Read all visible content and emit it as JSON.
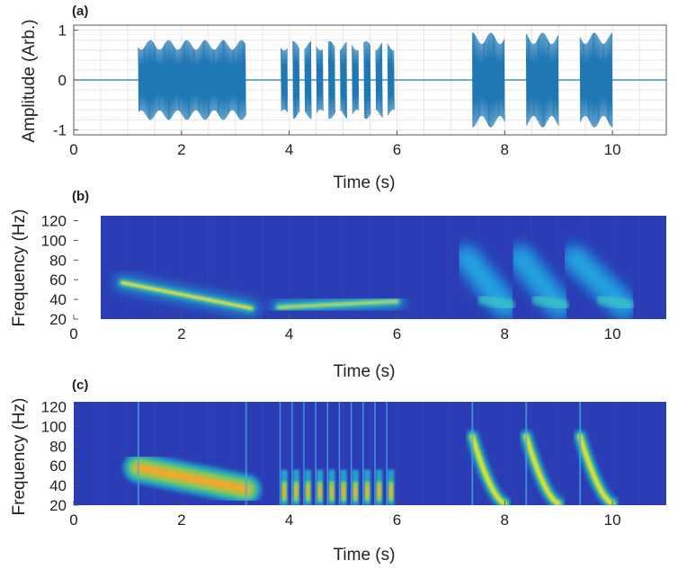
{
  "chart_data": [
    {
      "type": "line",
      "panel": "(a)",
      "xlabel": "Time (s)",
      "ylabel": "Amplitude (Arb.)",
      "xlim": [
        0,
        11
      ],
      "ylim": [
        -1.1,
        1.1
      ],
      "xticks": [
        0,
        2,
        4,
        6,
        8,
        10
      ],
      "yticks": [
        -1,
        0,
        1
      ],
      "grid": true,
      "color": "#1f77b4",
      "segments": [
        {
          "start": 1.2,
          "end": 3.2,
          "amplitude": 0.8,
          "kind": "continuous"
        },
        {
          "start": 3.8,
          "end": 6.0,
          "amplitude": 0.78,
          "kind": "pulses",
          "pulses": 10
        },
        {
          "start": 7.4,
          "end": 8.0,
          "amplitude": 0.95,
          "kind": "continuous"
        },
        {
          "start": 8.4,
          "end": 9.0,
          "amplitude": 0.95,
          "kind": "continuous"
        },
        {
          "start": 9.4,
          "end": 10.0,
          "amplitude": 0.95,
          "kind": "continuous"
        }
      ]
    },
    {
      "type": "heatmap",
      "panel": "(b)",
      "xlabel": "Time (s)",
      "ylabel": "Frequency (Hz)",
      "xlim": [
        0,
        11
      ],
      "ylim": [
        20,
        125
      ],
      "xticks": [
        0,
        2,
        4,
        6,
        8,
        10
      ],
      "yticks": [
        20,
        40,
        60,
        80,
        100,
        120
      ],
      "data_extent": [
        0.5,
        11
      ],
      "background_color": "#2b3db4",
      "features": [
        {
          "kind": "sweep",
          "t_start": 0.9,
          "t_end": 3.3,
          "f_start": 57,
          "f_end": 31,
          "intensity": 1.0
        },
        {
          "kind": "sweep",
          "t_start": 3.8,
          "t_end": 6.0,
          "f_start": 32,
          "f_end": 38,
          "intensity": 0.9
        },
        {
          "kind": "blob",
          "t_start": 7.2,
          "t_end": 8.1,
          "f_start": 82,
          "f_end": 34,
          "intensity": 0.5
        },
        {
          "kind": "blob",
          "t_start": 8.2,
          "t_end": 9.1,
          "f_start": 82,
          "f_end": 34,
          "intensity": 0.5
        },
        {
          "kind": "blob",
          "t_start": 9.2,
          "t_end": 10.3,
          "f_start": 82,
          "f_end": 34,
          "intensity": 0.5
        }
      ]
    },
    {
      "type": "heatmap",
      "panel": "(c)",
      "xlabel": "Time (s)",
      "ylabel": "Frequency (Hz)",
      "xlim": [
        0,
        11
      ],
      "ylim": [
        20,
        125
      ],
      "xticks": [
        0,
        2,
        4,
        6,
        8,
        10
      ],
      "yticks": [
        20,
        40,
        60,
        80,
        100,
        120
      ],
      "data_extent": [
        0,
        11
      ],
      "background_color": "#2b3db4",
      "features": [
        {
          "kind": "band",
          "t_start": 1.2,
          "t_end": 3.2,
          "f_start": 58,
          "f_end": 36,
          "intensity": 1.0
        },
        {
          "kind": "pulses",
          "t_start": 3.8,
          "t_end": 6.0,
          "f_center": 34,
          "pulses": 10,
          "intensity": 1.0
        },
        {
          "kind": "chirp",
          "t_start": 7.4,
          "t_end": 8.0,
          "f_start": 90,
          "f_end": 22,
          "intensity": 1.0
        },
        {
          "kind": "chirp",
          "t_start": 8.4,
          "t_end": 9.0,
          "f_start": 90,
          "f_end": 22,
          "intensity": 1.0
        },
        {
          "kind": "chirp",
          "t_start": 9.4,
          "t_end": 10.0,
          "f_start": 90,
          "f_end": 22,
          "intensity": 1.0
        }
      ]
    }
  ]
}
